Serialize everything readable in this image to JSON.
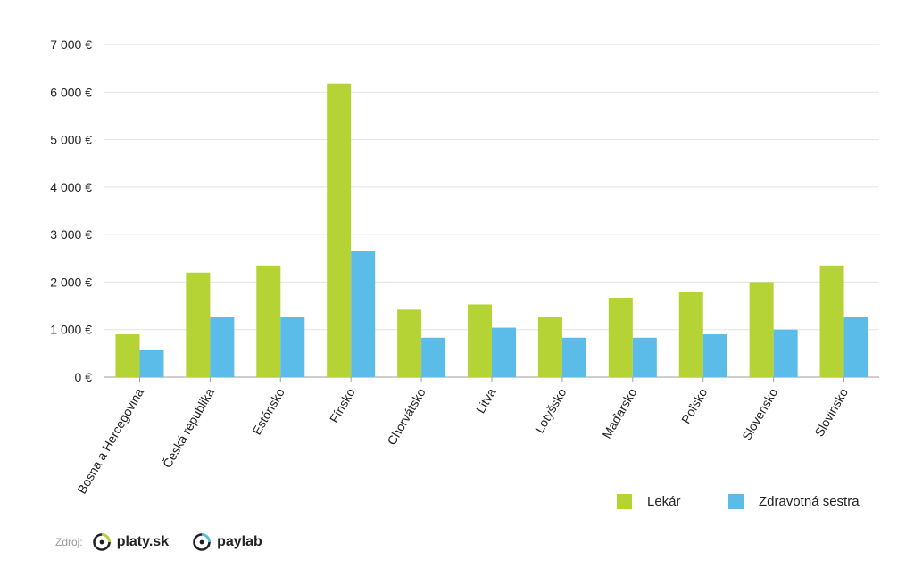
{
  "chart_data": {
    "type": "bar",
    "title": "",
    "xlabel": "",
    "ylabel": "",
    "ylim": [
      0,
      7000
    ],
    "y_ticks": [
      "0 €",
      "1 000 €",
      "2 000 €",
      "3 000 €",
      "4 000 €",
      "5 000 €",
      "6 000 €",
      "7 000 €"
    ],
    "y_tick_values": [
      0,
      1000,
      2000,
      3000,
      4000,
      5000,
      6000,
      7000
    ],
    "grid": true,
    "legend_position": "bottom-right",
    "categories": [
      "Bosna a Hercegovina",
      "Česká republika",
      "Estónsko",
      "Fínsko",
      "Chorvátsko",
      "Litva",
      "Lotyšsko",
      "Maďarsko",
      "Poľsko",
      "Slovensko",
      "Slovinsko"
    ],
    "series": [
      {
        "name": "Lekár",
        "color": "#b5d334",
        "values": [
          900,
          2200,
          2350,
          6180,
          1420,
          1530,
          1270,
          1670,
          1800,
          2000,
          2350
        ]
      },
      {
        "name": "Zdravotná sestra",
        "color": "#5bbce9",
        "values": [
          580,
          1270,
          1270,
          2650,
          830,
          1040,
          830,
          830,
          900,
          1000,
          1270
        ]
      }
    ]
  },
  "source": {
    "label": "Zdroj:",
    "brands": [
      {
        "name": "platy.sk",
        "icon": "platy-logo-icon"
      },
      {
        "name": "paylab",
        "icon": "paylab-logo-icon"
      }
    ]
  }
}
